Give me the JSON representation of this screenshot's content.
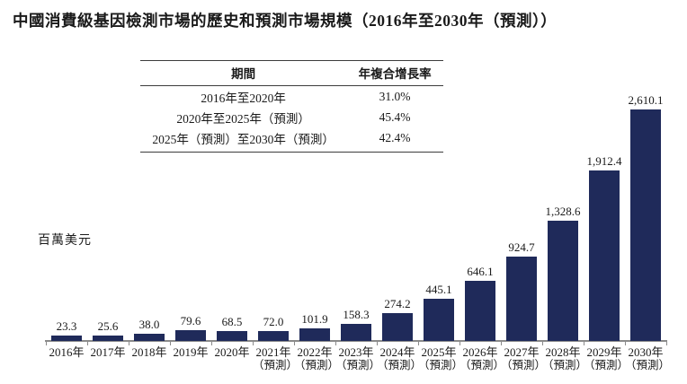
{
  "page": {
    "title": "中國消費級基因檢測市場的歷史和預測市場規模（2016年至2030年（預測））"
  },
  "cagr_table": {
    "headers": [
      "期間",
      "年複合增長率"
    ],
    "rows": [
      {
        "period": "2016年至2020年",
        "cagr": "31.0%"
      },
      {
        "period": "2020年至2025年（預測）",
        "cagr": "45.4%"
      },
      {
        "period": "2025年（預測）至2030年（預測）",
        "cagr": "42.4%"
      }
    ]
  },
  "chart_data": {
    "type": "bar",
    "title": "中國消費級基因檢測市場的歷史和預測市場規模（2016年至2030年（預測））",
    "ylabel": "百萬美元",
    "xlabel": "",
    "categories": [
      "2016年",
      "2017年",
      "2018年",
      "2019年",
      "2020年",
      "2021年",
      "2022年",
      "2023年",
      "2024年",
      "2025年",
      "2026年",
      "2027年",
      "2028年",
      "2029年",
      "2030年"
    ],
    "forecast": [
      false,
      false,
      false,
      false,
      false,
      true,
      true,
      true,
      true,
      true,
      true,
      true,
      true,
      true,
      true
    ],
    "forecast_suffix": "（預測）",
    "values": [
      23.3,
      25.6,
      38.0,
      79.6,
      68.5,
      72.0,
      101.9,
      158.3,
      274.2,
      445.1,
      646.1,
      924.7,
      1328.6,
      1912.4,
      2610.1
    ],
    "value_labels": [
      "23.3",
      "25.6",
      "38.0",
      "79.6",
      "68.5",
      "72.0",
      "101.9",
      "158.3",
      "274.2",
      "445.1",
      "646.1",
      "924.7",
      "1,328.6",
      "1,912.4",
      "2,610.1"
    ],
    "ylim": [
      0,
      2700
    ],
    "grid": false,
    "legend": false,
    "bar_color": "#1f2a5a",
    "axis_color": "#8a8a8a"
  }
}
